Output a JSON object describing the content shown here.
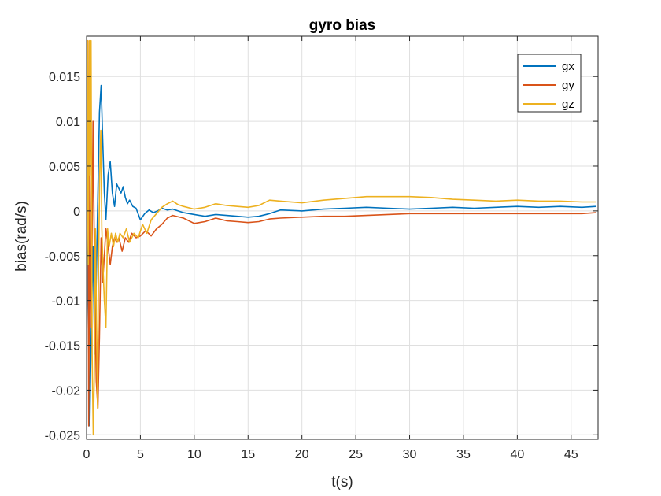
{
  "chart_data": {
    "type": "line",
    "title": "gyro bias",
    "xlabel": "t(s)",
    "ylabel": "bias(rad/s)",
    "xlim": [
      0,
      47.5
    ],
    "ylim": [
      -0.0255,
      0.0195
    ],
    "x_ticks": [
      0,
      5,
      10,
      15,
      20,
      25,
      30,
      35,
      40,
      45
    ],
    "x_tick_labels": [
      "0",
      "5",
      "10",
      "15",
      "20",
      "25",
      "30",
      "35",
      "40",
      "45"
    ],
    "y_ticks": [
      -0.025,
      -0.02,
      -0.015,
      -0.01,
      -0.005,
      0,
      0.005,
      0.01,
      0.015
    ],
    "y_tick_labels": [
      "-0.025",
      "-0.02",
      "-0.015",
      "-0.01",
      "-0.005",
      "0",
      "0.005",
      "0.01",
      "0.015"
    ],
    "grid": true,
    "legend_position": "top-right",
    "series": [
      {
        "name": "gx",
        "color": "#0072BD",
        "x": [
          0,
          0.15,
          0.3,
          0.45,
          0.6,
          0.75,
          0.9,
          1.05,
          1.2,
          1.35,
          1.5,
          1.65,
          1.8,
          2.0,
          2.2,
          2.4,
          2.6,
          2.8,
          3.0,
          3.2,
          3.4,
          3.6,
          3.8,
          4.0,
          4.3,
          4.6,
          5.0,
          5.4,
          5.8,
          6.2,
          6.6,
          7.0,
          7.5,
          8.0,
          9.0,
          10.0,
          11.0,
          12.0,
          13.0,
          14.0,
          15.0,
          16.0,
          17.0,
          18.0,
          20.0,
          22.0,
          24.0,
          26.0,
          28.0,
          30.0,
          32.0,
          34.0,
          36.0,
          38.0,
          40.0,
          42.0,
          44.0,
          46.0,
          47.3
        ],
        "y": [
          -0.001,
          -0.012,
          -0.024,
          -0.012,
          -0.004,
          -0.016,
          -0.008,
          0.002,
          0.011,
          0.014,
          0.008,
          0.002,
          -0.001,
          0.004,
          0.0055,
          0.002,
          0.0005,
          0.003,
          0.0025,
          0.002,
          0.0027,
          0.0015,
          0.0008,
          0.0012,
          0.0005,
          0.0003,
          -0.001,
          -0.0003,
          0.0001,
          -0.0002,
          0.0,
          0.0003,
          0.0001,
          0.0002,
          -0.0002,
          -0.0004,
          -0.0006,
          -0.0004,
          -0.0005,
          -0.0006,
          -0.0007,
          -0.0006,
          -0.0003,
          0.0001,
          0.0,
          0.0002,
          0.0003,
          0.0004,
          0.0003,
          0.0002,
          0.0003,
          0.0004,
          0.0003,
          0.0004,
          0.0005,
          0.0004,
          0.0005,
          0.0004,
          0.0005
        ]
      },
      {
        "name": "gy",
        "color": "#D95319",
        "x": [
          0,
          0.1,
          0.2,
          0.3,
          0.45,
          0.6,
          0.75,
          0.9,
          1.05,
          1.2,
          1.35,
          1.5,
          1.65,
          1.8,
          2.0,
          2.2,
          2.4,
          2.6,
          2.8,
          3.0,
          3.3,
          3.6,
          3.9,
          4.2,
          4.6,
          5.0,
          5.5,
          6.0,
          6.5,
          7.0,
          7.5,
          8.0,
          9.0,
          10.0,
          11.0,
          12.0,
          13.0,
          14.0,
          15.0,
          16.0,
          17.0,
          18.0,
          20.0,
          22.0,
          24.0,
          26.0,
          28.0,
          30.0,
          32.0,
          34.0,
          36.0,
          38.0,
          40.0,
          42.0,
          44.0,
          46.0,
          47.3
        ],
        "y": [
          0.0,
          0.019,
          -0.024,
          0.005,
          -0.013,
          0.01,
          -0.008,
          -0.019,
          -0.022,
          -0.014,
          -0.003,
          -0.008,
          -0.005,
          -0.002,
          -0.004,
          -0.006,
          -0.004,
          -0.003,
          -0.0035,
          -0.003,
          -0.0045,
          -0.003,
          -0.0035,
          -0.0025,
          -0.003,
          -0.0028,
          -0.0022,
          -0.0028,
          -0.002,
          -0.0015,
          -0.0008,
          -0.0005,
          -0.0008,
          -0.0014,
          -0.0012,
          -0.0008,
          -0.0011,
          -0.0012,
          -0.0013,
          -0.0012,
          -0.0009,
          -0.0008,
          -0.0007,
          -0.0006,
          -0.0006,
          -0.0005,
          -0.0004,
          -0.0003,
          -0.0003,
          -0.0003,
          -0.0003,
          -0.0003,
          -0.0003,
          -0.0003,
          -0.0003,
          -0.0003,
          -0.0002
        ]
      },
      {
        "name": "gz",
        "color": "#EDB120",
        "x": [
          0,
          0.08,
          0.16,
          0.24,
          0.32,
          0.42,
          0.52,
          0.62,
          0.72,
          0.82,
          0.92,
          1.02,
          1.12,
          1.22,
          1.32,
          1.42,
          1.52,
          1.65,
          1.8,
          1.95,
          2.1,
          2.3,
          2.5,
          2.7,
          2.9,
          3.1,
          3.4,
          3.7,
          4.0,
          4.4,
          4.8,
          5.2,
          5.6,
          6.0,
          6.5,
          7.0,
          7.5,
          8.0,
          8.5,
          9.0,
          10.0,
          11.0,
          12.0,
          13.0,
          14.0,
          15.0,
          16.0,
          17.0,
          18.0,
          20.0,
          22.0,
          24.0,
          26.0,
          28.0,
          30.0,
          32.0,
          34.0,
          36.0,
          38.0,
          40.0,
          42.0,
          44.0,
          46.0,
          47.3
        ],
        "y": [
          0.002,
          0.019,
          -0.006,
          0.019,
          0.004,
          0.019,
          -0.016,
          -0.025,
          -0.018,
          -0.002,
          -0.012,
          -0.022,
          -0.006,
          0.004,
          0.009,
          -0.002,
          -0.006,
          -0.01,
          -0.013,
          -0.002,
          -0.004,
          -0.0025,
          -0.004,
          -0.0025,
          -0.0035,
          -0.0025,
          -0.003,
          -0.002,
          -0.0035,
          -0.0025,
          -0.003,
          -0.0015,
          -0.0025,
          -0.001,
          -0.0003,
          0.0004,
          0.0008,
          0.0011,
          0.0007,
          0.0005,
          0.0002,
          0.0004,
          0.0008,
          0.0006,
          0.0005,
          0.0004,
          0.0006,
          0.0012,
          0.0011,
          0.0009,
          0.0012,
          0.0014,
          0.0016,
          0.0016,
          0.0016,
          0.0015,
          0.0013,
          0.0012,
          0.0011,
          0.0012,
          0.0011,
          0.0011,
          0.001,
          0.001
        ]
      }
    ]
  }
}
